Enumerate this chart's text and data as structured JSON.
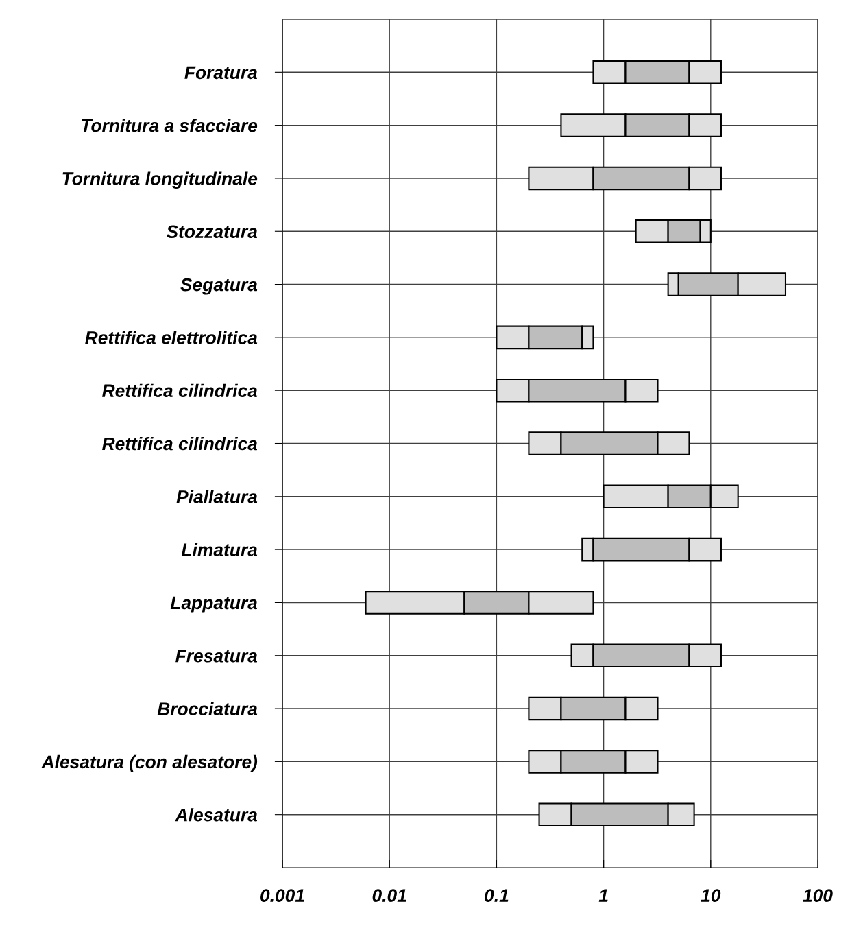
{
  "chart_data": {
    "type": "bar",
    "orientation": "horizontal",
    "categories": [
      "Foratura",
      "Tornitura a sfacciare",
      "Tornitura longitudinale",
      "Stozzatura",
      "Segatura",
      "Rettifica elettrolitica",
      "Rettifica cilindrica",
      "Rettifica cilindrica",
      "Piallatura",
      "Limatura",
      "Lappatura",
      "Fresatura",
      "Brocciatura",
      "Alesatura (con alesatore)",
      "Alesatura"
    ],
    "series": [
      {
        "color": "#e0e0e0",
        "base": [
          0.8,
          0.4,
          0.2,
          2,
          4,
          0.1,
          0.1,
          0.2,
          1,
          0.63,
          0.006,
          0.5,
          0.2,
          0.2,
          0.25
        ],
        "values": [
          0.8,
          1.2,
          0.6,
          2,
          1,
          0.1,
          0.1,
          0.2,
          3,
          0.17,
          0.044,
          0.3,
          0.2,
          0.2,
          0.25
        ]
      },
      {
        "color": "#bdbdbd",
        "base": [
          1.6,
          1.6,
          0.8,
          4,
          5,
          0.2,
          0.2,
          0.4,
          4,
          0.8,
          0.05,
          0.8,
          0.4,
          0.4,
          0.5
        ],
        "values": [
          4.7,
          4.7,
          5.5,
          4,
          13,
          0.43,
          1.4,
          2.8,
          6,
          5.5,
          0.15,
          5.5,
          1.2,
          1.2,
          3.5
        ]
      },
      {
        "color": "#e0e0e0",
        "base": [
          6.3,
          6.3,
          6.3,
          8,
          18,
          0.63,
          1.6,
          3.2,
          10,
          6.3,
          0.2,
          6.3,
          1.6,
          1.6,
          4
        ],
        "values": [
          6.2,
          6.2,
          6.2,
          2,
          32,
          0.17,
          1.6,
          3.1,
          8,
          6.2,
          0.6,
          6.2,
          1.6,
          1.6,
          3
        ]
      }
    ],
    "log": "x",
    "xlim": [
      0.001,
      100
    ],
    "xticks": [
      0.001,
      0.01,
      0.1,
      1,
      10,
      100
    ],
    "grid": true
  }
}
